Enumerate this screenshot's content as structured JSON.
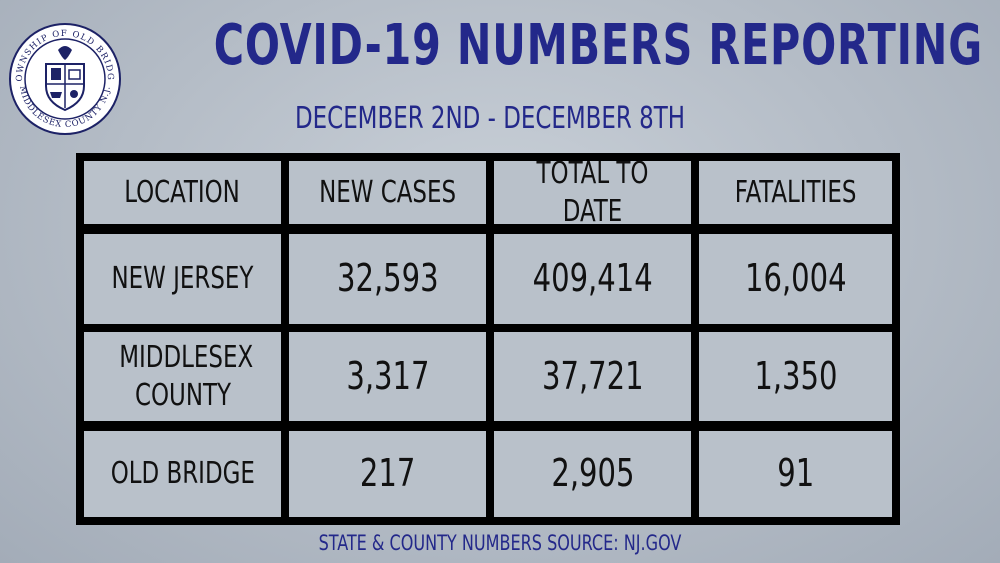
{
  "seal": {
    "top_text": "TOWNSHIP OF OLD BRIDGE",
    "bottom_text": "MIDDLESEX COUNTY N.J."
  },
  "title": "COVID-19 NUMBERS REPORTING",
  "subtitle": "DECEMBER 2ND - DECEMBER 8TH",
  "table": {
    "headers": [
      "LOCATION",
      "NEW CASES",
      "TOTAL TO DATE",
      "FATALITIES"
    ],
    "rows": [
      [
        "NEW JERSEY",
        "32,593",
        "409,414",
        "16,004"
      ],
      [
        "MIDDLESEX COUNTY",
        "3,317",
        "37,721",
        "1,350"
      ],
      [
        "OLD BRIDGE",
        "217",
        "2,905",
        "91"
      ]
    ]
  },
  "footer": "STATE & COUNTY NUMBERS SOURCE: NJ.GOV",
  "colors": {
    "accent": "#23288a",
    "cell_bg": "#b9c1ca",
    "grid": "#000000"
  }
}
